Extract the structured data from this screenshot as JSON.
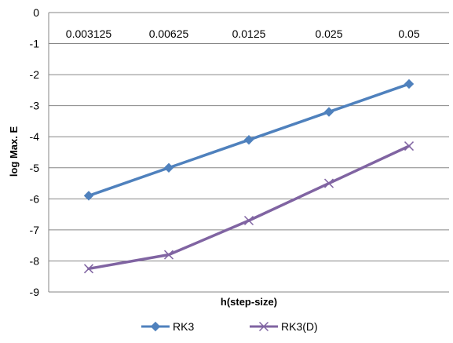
{
  "chart_data": {
    "type": "line",
    "categories": [
      "0.003125",
      "0.00625",
      "0.0125",
      "0.025",
      "0.05"
    ],
    "series": [
      {
        "name": "RK3",
        "values": [
          -5.9,
          -5.0,
          -4.1,
          -3.2,
          -2.3
        ],
        "color": "#4F81BD",
        "marker": "diamond"
      },
      {
        "name": "RK3(D)",
        "values": [
          -8.25,
          -7.8,
          -6.7,
          -5.5,
          -4.3
        ],
        "color": "#8064A2",
        "marker": "x"
      }
    ],
    "xlabel": "h(step-size)",
    "ylabel": "log Max. E",
    "ylim": [
      -9,
      0
    ],
    "yticks": [
      "0",
      "-1",
      "-2",
      "-3",
      "-4",
      "-5",
      "-6",
      "-7",
      "-8",
      "-9"
    ],
    "x_tick_labels_position": "top",
    "grid": "horizontal",
    "legend_position": "bottom"
  }
}
